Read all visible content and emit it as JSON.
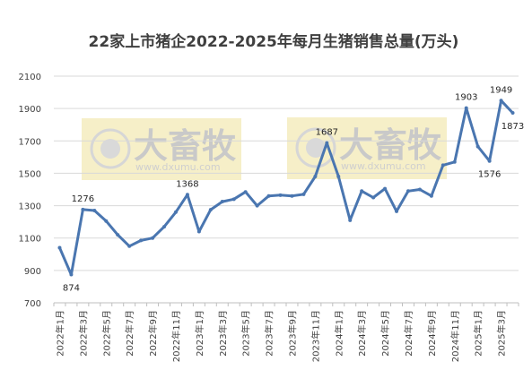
{
  "chart_data": {
    "type": "line",
    "title": "22家上市猪企2022-2025年每月生猪销售总量(万头)",
    "xlabel": "",
    "ylabel": "",
    "ylim": [
      700,
      2100
    ],
    "yticks": [
      700,
      900,
      1100,
      1300,
      1500,
      1700,
      1900,
      2100
    ],
    "grid": "horizontal",
    "legend": "none",
    "x": [
      "2022年1月",
      "2022年2月",
      "2022年3月",
      "2022年4月",
      "2022年5月",
      "2022年6月",
      "2022年7月",
      "2022年8月",
      "2022年9月",
      "2022年10月",
      "2022年11月",
      "2022年12月",
      "2023年1月",
      "2023年2月",
      "2023年3月",
      "2023年4月",
      "2023年5月",
      "2023年6月",
      "2023年7月",
      "2023年8月",
      "2023年9月",
      "2023年10月",
      "2023年11月",
      "2023年12月",
      "2024年1月",
      "2024年2月",
      "2024年3月",
      "2024年4月",
      "2024年5月",
      "2024年6月",
      "2024年7月",
      "2024年8月",
      "2024年9月",
      "2024年10月",
      "2024年11月",
      "2024年12月",
      "2025年1月",
      "2025年2月",
      "2025年3月",
      "2025年4月"
    ],
    "x_tick_labels": [
      "2022年1月",
      "2022年3月",
      "2022年5月",
      "2022年7月",
      "2022年9月",
      "2022年11月",
      "2023年1月",
      "2023年3月",
      "2023年5月",
      "2023年7月",
      "2023年9月",
      "2023年11月",
      "2024年1月",
      "2024年3月",
      "2024年5月",
      "2024年7月",
      "2024年9月",
      "2024年11月",
      "2025年1月",
      "2025年3月"
    ],
    "series": [
      {
        "values": [
          1040,
          874,
          1276,
          1270,
          1205,
          1120,
          1050,
          1085,
          1100,
          1170,
          1260,
          1368,
          1140,
          1275,
          1325,
          1340,
          1385,
          1300,
          1360,
          1365,
          1360,
          1370,
          1480,
          1687,
          1480,
          1210,
          1390,
          1350,
          1405,
          1265,
          1390,
          1400,
          1360,
          1550,
          1570,
          1903,
          1665,
          1576,
          1949,
          1873
        ],
        "color": "#4a76b0"
      }
    ],
    "data_labels": [
      {
        "index": 1,
        "text": "874",
        "pos": "below"
      },
      {
        "index": 2,
        "text": "1276",
        "pos": "above"
      },
      {
        "index": 11,
        "text": "1368",
        "pos": "above"
      },
      {
        "index": 23,
        "text": "1687",
        "pos": "above"
      },
      {
        "index": 35,
        "text": "1903",
        "pos": "above"
      },
      {
        "index": 37,
        "text": "1576",
        "pos": "below"
      },
      {
        "index": 38,
        "text": "1949",
        "pos": "above"
      },
      {
        "index": 39,
        "text": "1873",
        "pos": "below"
      }
    ]
  },
  "watermark": {
    "text": "大畜牧",
    "url": "www.dxumu.com",
    "box_color": "#f5edc2"
  }
}
